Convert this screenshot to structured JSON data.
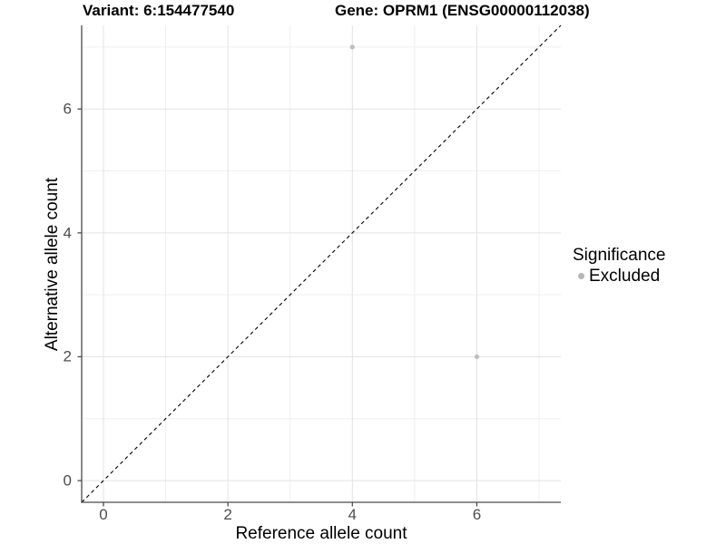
{
  "chart_data": {
    "type": "scatter",
    "title_left": "Variant: 6:154477540",
    "title_right": "Gene: OPRM1 (ENSG00000112038)",
    "xlabel": "Reference allele count",
    "ylabel": "Alternative allele count",
    "xlim": [
      -0.35,
      7.35
    ],
    "ylim": [
      -0.35,
      7.35
    ],
    "major_ticks": [
      0,
      2,
      4,
      6
    ],
    "minor_gridlines": [
      1,
      3,
      5,
      7
    ],
    "grid": "major+minor",
    "series": [
      {
        "name": "Excluded",
        "color": "#bebebe",
        "point_radius": 2.6,
        "points": [
          {
            "x": 4,
            "y": 7
          },
          {
            "x": 6,
            "y": 2
          }
        ]
      }
    ],
    "reference_line": {
      "type": "identity",
      "style": "dashed",
      "color": "#000000"
    },
    "legend": {
      "position": "right",
      "title": "Significance",
      "items": [
        {
          "label": "Excluded",
          "color": "#b5b5b5"
        }
      ]
    },
    "colors": {
      "background": "#ffffff",
      "axis_line": "#4a4a4a",
      "tick_label": "#4d4d4d",
      "grid_major": "#e3e3e3",
      "grid_minor": "#efefef"
    }
  }
}
